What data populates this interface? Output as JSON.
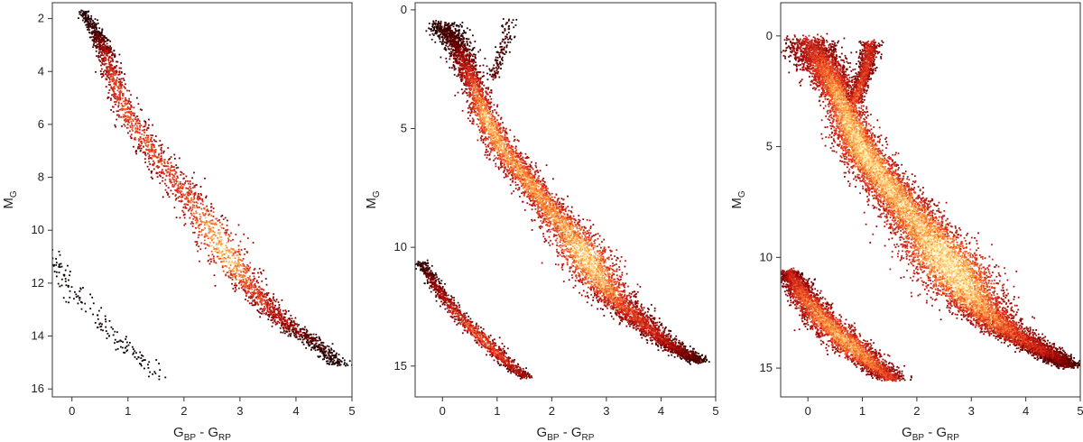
{
  "chart_data": [
    {
      "type": "scatter",
      "xlabel": {
        "main": "G",
        "sub1": "BP",
        "mid": " - G",
        "sub2": "RP"
      },
      "ylabel": {
        "main": "M",
        "sub": "G"
      },
      "xlim": [
        -0.35,
        5.0
      ],
      "ylim": [
        16.3,
        1.4
      ],
      "y_inverted": true,
      "xticks": [
        0,
        1,
        2,
        3,
        4,
        5
      ],
      "yticks": [
        2,
        4,
        6,
        8,
        10,
        12,
        14,
        16
      ],
      "density_colormap": [
        "#000000",
        "#8b0000",
        "#e0301e",
        "#ff9a3c",
        "#fff3b0"
      ],
      "series": [
        {
          "kind": "main-sequence",
          "points": [
            [
              0.2,
              1.7
            ],
            [
              0.45,
              2.6
            ],
            [
              0.6,
              3.3
            ],
            [
              0.75,
              4.3
            ],
            [
              1.0,
              5.7
            ],
            [
              1.4,
              6.9
            ],
            [
              1.8,
              8.0
            ],
            [
              2.2,
              9.1
            ],
            [
              2.55,
              10.2
            ],
            [
              2.85,
              11.2
            ],
            [
              3.15,
              12.1
            ],
            [
              3.5,
              12.9
            ],
            [
              3.85,
              13.6
            ],
            [
              4.3,
              14.2
            ],
            [
              4.8,
              15.1
            ]
          ],
          "width": [
            0.05,
            0.07,
            0.09,
            0.1,
            0.12,
            0.13,
            0.15,
            0.17,
            0.19,
            0.18,
            0.15,
            0.13,
            0.11,
            0.1,
            0.09
          ],
          "density": [
            0.05,
            0.15,
            0.35,
            0.55,
            0.6,
            0.55,
            0.55,
            0.6,
            0.85,
            0.85,
            0.6,
            0.45,
            0.35,
            0.15,
            0.05
          ],
          "count": 2600
        },
        {
          "kind": "white-dwarf",
          "points": [
            [
              -0.35,
              10.8
            ],
            [
              -0.1,
              11.9
            ],
            [
              0.3,
              13.0
            ],
            [
              0.7,
              13.9
            ],
            [
              1.1,
              14.7
            ],
            [
              1.6,
              15.6
            ]
          ],
          "width": [
            0.08,
            0.1,
            0.12,
            0.13,
            0.12,
            0.1
          ],
          "density": [
            0.02,
            0.03,
            0.03,
            0.03,
            0.02,
            0.02
          ],
          "count": 160
        }
      ]
    },
    {
      "type": "scatter",
      "xlabel": {
        "main": "G",
        "sub1": "BP",
        "mid": " - G",
        "sub2": "RP"
      },
      "ylabel": {
        "main": "M",
        "sub": "G"
      },
      "xlim": [
        -0.5,
        5.0
      ],
      "ylim": [
        16.3,
        -0.3
      ],
      "y_inverted": true,
      "xticks": [
        0,
        1,
        2,
        3,
        4,
        5
      ],
      "yticks": [
        0,
        5,
        10,
        15
      ],
      "density_colormap": [
        "#000000",
        "#8b0000",
        "#e0301e",
        "#ff9a3c",
        "#fff3b0"
      ],
      "series": [
        {
          "kind": "main-sequence",
          "points": [
            [
              0.0,
              0.6
            ],
            [
              0.3,
              1.6
            ],
            [
              0.55,
              3.0
            ],
            [
              0.8,
              4.6
            ],
            [
              1.1,
              5.9
            ],
            [
              1.5,
              7.0
            ],
            [
              1.9,
              8.2
            ],
            [
              2.3,
              9.3
            ],
            [
              2.6,
              10.3
            ],
            [
              2.85,
              11.3
            ],
            [
              3.2,
              12.3
            ],
            [
              3.65,
              13.2
            ],
            [
              4.2,
              14.2
            ],
            [
              4.7,
              14.8
            ]
          ],
          "width": [
            0.15,
            0.14,
            0.1,
            0.12,
            0.14,
            0.15,
            0.17,
            0.2,
            0.24,
            0.22,
            0.18,
            0.14,
            0.12,
            0.1
          ],
          "density": [
            0.1,
            0.2,
            0.55,
            0.85,
            0.8,
            0.75,
            0.75,
            0.8,
            0.95,
            0.85,
            0.6,
            0.5,
            0.35,
            0.15
          ],
          "count": 6500
        },
        {
          "kind": "giant-branch",
          "points": [
            [
              0.9,
              3.0
            ],
            [
              1.05,
              2.0
            ],
            [
              1.15,
              1.2
            ],
            [
              1.2,
              0.4
            ]
          ],
          "width": [
            0.05,
            0.05,
            0.06,
            0.06
          ],
          "density": [
            0.2,
            0.15,
            0.15,
            0.1
          ],
          "count": 140
        },
        {
          "kind": "white-dwarf",
          "points": [
            [
              -0.4,
              10.6
            ],
            [
              -0.1,
              11.7
            ],
            [
              0.3,
              12.9
            ],
            [
              0.7,
              13.8
            ],
            [
              1.1,
              14.7
            ],
            [
              1.55,
              15.5
            ]
          ],
          "width": [
            0.05,
            0.07,
            0.08,
            0.09,
            0.08,
            0.07
          ],
          "density": [
            0.1,
            0.3,
            0.5,
            0.6,
            0.5,
            0.3
          ],
          "count": 1100
        }
      ]
    },
    {
      "type": "scatter",
      "xlabel": {
        "main": "G",
        "sub1": "BP",
        "mid": " - G",
        "sub2": "RP"
      },
      "ylabel": {
        "main": "M",
        "sub": "G"
      },
      "xlim": [
        -0.5,
        5.0
      ],
      "ylim": [
        16.3,
        -1.5
      ],
      "y_inverted": true,
      "xticks": [
        0,
        1,
        2,
        3,
        4,
        5
      ],
      "yticks": [
        0,
        5,
        10,
        15
      ],
      "density_colormap": [
        "#000000",
        "#8b0000",
        "#e0301e",
        "#ff9a3c",
        "#fff3b0"
      ],
      "series": [
        {
          "kind": "main-sequence",
          "points": [
            [
              0.0,
              0.2
            ],
            [
              0.3,
              1.4
            ],
            [
              0.55,
              2.6
            ],
            [
              0.8,
              4.2
            ],
            [
              1.05,
              5.4
            ],
            [
              1.4,
              6.6
            ],
            [
              1.8,
              7.8
            ],
            [
              2.2,
              9.0
            ],
            [
              2.55,
              10.2
            ],
            [
              2.85,
              11.3
            ],
            [
              3.2,
              12.4
            ],
            [
              3.7,
              13.4
            ],
            [
              4.3,
              14.2
            ],
            [
              4.8,
              14.9
            ]
          ],
          "width": [
            0.25,
            0.2,
            0.15,
            0.18,
            0.2,
            0.22,
            0.25,
            0.3,
            0.35,
            0.32,
            0.25,
            0.2,
            0.15,
            0.12
          ],
          "density": [
            0.4,
            0.6,
            0.8,
            0.9,
            0.95,
            0.9,
            0.85,
            0.9,
            1.0,
            0.95,
            0.75,
            0.6,
            0.45,
            0.2
          ],
          "count": 12000
        },
        {
          "kind": "giant-branch",
          "points": [
            [
              0.85,
              3.0
            ],
            [
              1.0,
              2.0
            ],
            [
              1.1,
              1.2
            ],
            [
              1.15,
              0.3
            ]
          ],
          "width": [
            0.07,
            0.07,
            0.08,
            0.09
          ],
          "density": [
            0.6,
            0.55,
            0.5,
            0.45
          ],
          "count": 900
        },
        {
          "kind": "white-dwarf",
          "points": [
            [
              -0.35,
              10.6
            ],
            [
              -0.1,
              11.7
            ],
            [
              0.3,
              12.9
            ],
            [
              0.7,
              13.8
            ],
            [
              1.1,
              14.7
            ],
            [
              1.55,
              15.5
            ]
          ],
          "width": [
            0.1,
            0.14,
            0.17,
            0.18,
            0.16,
            0.12
          ],
          "density": [
            0.4,
            0.6,
            0.75,
            0.8,
            0.7,
            0.5
          ],
          "count": 3500
        }
      ]
    }
  ]
}
